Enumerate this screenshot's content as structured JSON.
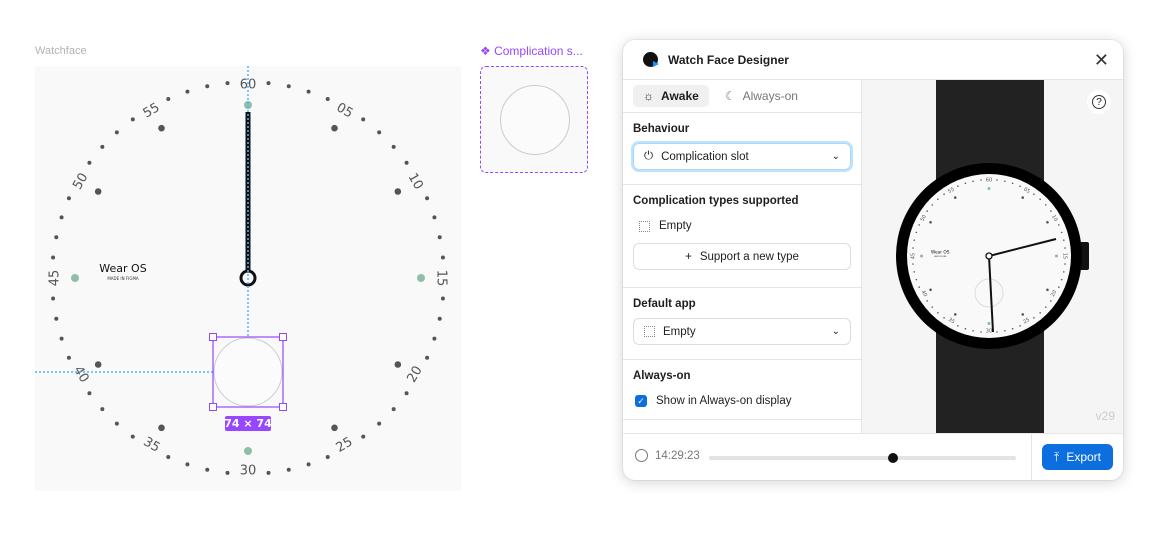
{
  "canvas": {
    "frame_label": "Watchface",
    "component_label": "Complication s...",
    "size_badge": "74 × 74",
    "brand": "Wear OS",
    "brand_sub": "MADE IN FIGMA",
    "dial_numbers": [
      "60",
      "05",
      "10",
      "15",
      "20",
      "25",
      "30",
      "35",
      "40",
      "45",
      "50",
      "55"
    ],
    "colors": {
      "selection": "#9747ff",
      "guide": "#4db5ff",
      "accent_dot": "#8fbfa8"
    }
  },
  "plugin": {
    "title": "Watch Face Designer",
    "tabs": [
      {
        "label": "Awake",
        "icon": "sun-icon",
        "active": true
      },
      {
        "label": "Always-on",
        "icon": "moon-icon",
        "active": false
      }
    ],
    "behaviour": {
      "label": "Behaviour",
      "value": "Complication slot",
      "icon": "plug-icon"
    },
    "types": {
      "label": "Complication types supported",
      "items": [
        "Empty"
      ],
      "add_label": "Support a new type"
    },
    "default_app": {
      "label": "Default app",
      "value": "Empty"
    },
    "always_on": {
      "label": "Always-on",
      "checkbox_label": "Show in Always-on display",
      "checked": true
    },
    "time": "14:29:23",
    "time_progress": 0.6,
    "export_label": "Export",
    "version": "v29",
    "accent": "#0d6ee0"
  }
}
